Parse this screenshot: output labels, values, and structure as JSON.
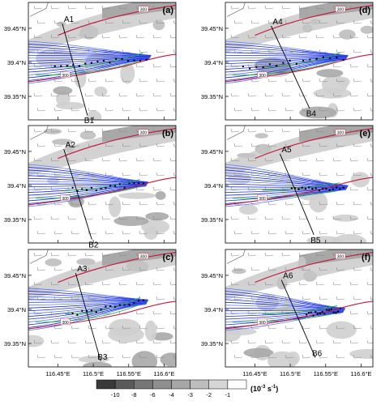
{
  "panels": [
    {
      "label": "(a)",
      "start": "A1",
      "end": "B1",
      "contour": "300",
      "y_ticks": [
        "39.45°N",
        "39.4°N",
        "39.35°N"
      ],
      "x_ticks": []
    },
    {
      "label": "(b)",
      "start": "A2",
      "end": "B2",
      "contour": "300",
      "y_ticks": [
        "39.45°N",
        "39.4°N",
        "39.35°N"
      ],
      "x_ticks": []
    },
    {
      "label": "(c)",
      "start": "A3",
      "end": "B3",
      "contour": "300",
      "y_ticks": [
        "39.45°N",
        "39.4°N",
        "39.35°N"
      ],
      "x_ticks": [
        "116.45°E",
        "116.5°E",
        "116.55°E",
        "116.6°E"
      ]
    },
    {
      "label": "(d)",
      "start": "A4",
      "end": "B4",
      "contour": "300",
      "y_ticks": [
        "39.45°N",
        "39.4°N",
        "39.35°N"
      ],
      "x_ticks": []
    },
    {
      "label": "(e)",
      "start": "A5",
      "end": "B5",
      "contour": "300",
      "y_ticks": [
        "39.45°N",
        "39.4°N",
        "39.35°N"
      ],
      "x_ticks": []
    },
    {
      "label": "(f)",
      "start": "A6",
      "end": "B6",
      "contour": "300",
      "y_ticks": [
        "39.45°N",
        "39.4°N",
        "39.35°N"
      ],
      "x_ticks": [
        "116.45°E",
        "116.5°E",
        "116.55°E",
        "116.6°E"
      ]
    }
  ],
  "colorbar": {
    "ticks": [
      "-10",
      "-8",
      "-6",
      "-4",
      "-3",
      "-2",
      "-1"
    ],
    "unit": "(10",
    "unit_exp": "-3",
    "unit_tail": " s",
    "unit_exp2": "-1",
    "unit_close": ")",
    "colors": [
      "#3a3a3a",
      "#5a5a5a",
      "#767676",
      "#8f8f8f",
      "#a6a6a6",
      "#bdbdbd",
      "#d6d6d6",
      "#ffffff"
    ]
  },
  "colors": {
    "trajectory": "#1f2fd6",
    "trajectory_light": "#5a7bff",
    "contour": "#c0183c",
    "green": "#22aa44",
    "shade": "#bdbdbd"
  }
}
